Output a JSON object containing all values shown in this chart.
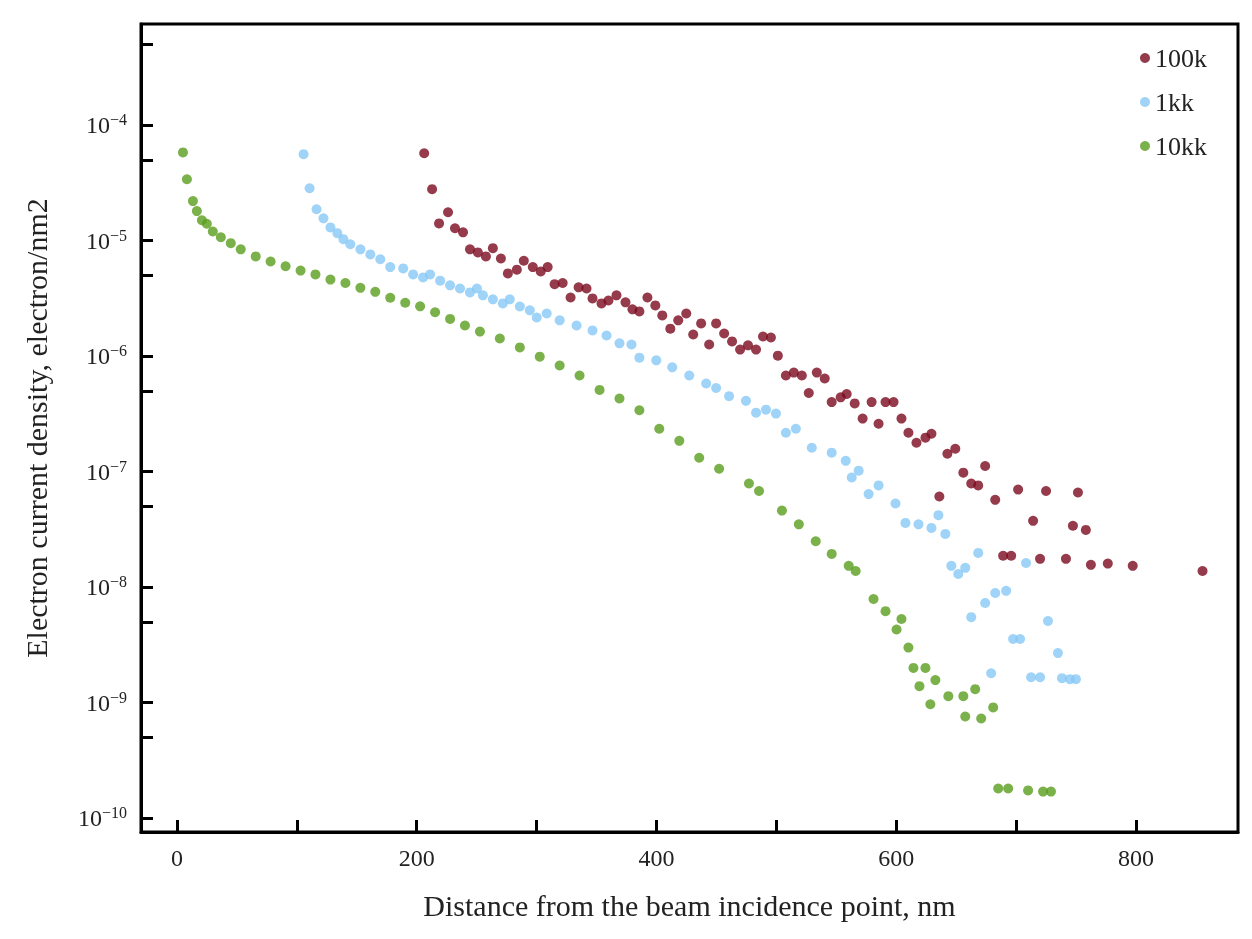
{
  "chart_data": {
    "type": "scatter",
    "xlabel": "Distance from the beam incidence point, nm",
    "ylabel": "Electron current density, electron/nm2",
    "log": "y",
    "grid": false,
    "legend": "top right",
    "marker": "circle",
    "xlim": [
      -30,
      885
    ],
    "xticks": [
      0,
      {
        "value": 100,
        "label": null
      },
      200,
      {
        "value": 300,
        "label": null
      },
      400,
      {
        "value": 500,
        "label": null
      },
      600,
      {
        "value": 700,
        "label": null
      },
      800
    ],
    "ylim": [
      7.6e-11,
      0.00075
    ],
    "yticks": [
      {
        "value": 1e-10,
        "label": "10$^{−10}$"
      },
      {
        "value": 5e-10,
        "label": null
      },
      {
        "value": 1e-09,
        "label": "10$^{−9}$"
      },
      {
        "value": 5e-09,
        "label": null
      },
      {
        "value": 1e-08,
        "label": "10$^{−8}$"
      },
      {
        "value": 5e-08,
        "label": null
      },
      {
        "value": 1e-07,
        "label": "10$^{−7}$"
      },
      {
        "value": 5e-07,
        "label": null
      },
      {
        "value": 1e-06,
        "label": "10$^{−6}$"
      },
      {
        "value": 5e-06,
        "label": null
      },
      {
        "value": 1e-05,
        "label": "10$^{−5}$"
      },
      {
        "value": 5e-05,
        "label": null
      },
      {
        "value": 0.0001,
        "label": "10$^{−4}$"
      },
      {
        "value": 0.0005,
        "label": null
      }
    ],
    "series": [
      {
        "name": "100k",
        "color": "#7b0a1e",
        "x": [
          206.2,
          212.8,
          218.6,
          226.1,
          231.9,
          238.6,
          244.4,
          251.0,
          257.7,
          263.5,
          270.2,
          276.0,
          283.5,
          289.3,
          296.8,
          303.4,
          309.2,
          315.0,
          321.7,
          328.3,
          335.0,
          341.6,
          346.6,
          354.1,
          359.9,
          366.6,
          374.1,
          379.9,
          385.7,
          392.4,
          399.0,
          404.8,
          411.5,
          418.1,
          424.8,
          430.6,
          437.2,
          443.9,
          449.7,
          456.4,
          463.0,
          469.7,
          476.3,
          483.0,
          488.8,
          495.4,
          501.2,
          507.9,
          514.5,
          521.2,
          527.0,
          533.7,
          540.3,
          546.1,
          553.6,
          558.6,
          565.3,
          571.9,
          579.4,
          585.2,
          591.0,
          597.7,
          604.3,
          610.1,
          616.8,
          624.3,
          629.3,
          635.9,
          642.6,
          649.2,
          655.9,
          662.5,
          668.3,
          674.1,
          682.5,
          689.1,
          695.8,
          701.6,
          714.1,
          719.9,
          724.9,
          741.5,
          747.3,
          751.5,
          758.1,
          762.3,
          776.4,
          797.2,
          855.4
        ],
        "values": [
          5.7e-05,
          2.79e-05,
          1.41e-05,
          1.76e-05,
          1.28e-05,
          1.18e-05,
          8.4e-06,
          7.9e-06,
          7.3e-06,
          8.6e-06,
          7e-06,
          5.2e-06,
          5.6e-06,
          6.7e-06,
          5.9e-06,
          5.4e-06,
          5.9e-06,
          4.2e-06,
          4.3e-06,
          3.22e-06,
          3.94e-06,
          3.85e-06,
          3.16e-06,
          2.86e-06,
          3.03e-06,
          3.36e-06,
          2.92e-06,
          2.54e-06,
          2.44e-06,
          3.22e-06,
          2.75e-06,
          2.25e-06,
          1.73e-06,
          2.04e-06,
          2.34e-06,
          1.54e-06,
          1.92e-06,
          1.26e-06,
          1.92e-06,
          1.57e-06,
          1.34e-06,
          1.14e-06,
          1.24e-06,
          1.14e-06,
          1.48e-06,
          1.45e-06,
          1.01e-06,
          6.8e-07,
          7.2e-07,
          6.8e-07,
          4.8e-07,
          7.2e-07,
          6.4e-07,
          4e-07,
          4.4e-07,
          4.7e-07,
          3.9e-07,
          2.88e-07,
          4e-07,
          2.6e-07,
          4e-07,
          4e-07,
          2.88e-07,
          2.17e-07,
          1.78e-07,
          1.97e-07,
          2.13e-07,
          6.1e-08,
          1.43e-07,
          1.58e-07,
          9.8e-08,
          7.9e-08,
          7.6e-08,
          1.12e-07,
          5.7e-08,
          1.87e-08,
          1.87e-08,
          7e-08,
          3.75e-08,
          1.76e-08,
          6.8e-08,
          1.76e-08,
          3.4e-08,
          6.6e-08,
          3.13e-08,
          1.56e-08,
          1.6e-08,
          1.53e-08,
          1.38e-08
        ]
      },
      {
        "name": "1kk",
        "color": "#87c8f5",
        "x": [
          105.6,
          110.6,
          116.4,
          122.2,
          128.0,
          133.8,
          138.8,
          144.6,
          153.0,
          161.3,
          169.6,
          177.9,
          188.7,
          197.0,
          205.3,
          211.1,
          219.5,
          227.8,
          236.1,
          244.4,
          250.2,
          255.2,
          263.5,
          271.8,
          277.6,
          286.0,
          294.3,
          300.1,
          308.4,
          319.2,
          333.3,
          346.6,
          358.3,
          369.1,
          379.1,
          385.7,
          399.8,
          413.1,
          427.3,
          441.4,
          449.7,
          460.5,
          474.6,
          483.0,
          491.3,
          499.6,
          507.9,
          516.2,
          529.5,
          546.1,
          557.8,
          562.8,
          568.6,
          576.9,
          585.2,
          599.3,
          607.6,
          618.5,
          629.3,
          635.1,
          640.9,
          645.9,
          651.7,
          657.5,
          662.5,
          668.3,
          674.1,
          679.1,
          682.5,
          691.6,
          697.4,
          703.2,
          708.2,
          712.4,
          719.9,
          726.5,
          734.8,
          738.2,
          744.8,
          749.8
        ],
        "values": [
          5.6e-05,
          2.84e-05,
          1.87e-05,
          1.56e-05,
          1.3e-05,
          1.16e-05,
          1.03e-05,
          9.3e-06,
          8.4e-06,
          7.6e-06,
          6.9e-06,
          5.9e-06,
          5.75e-06,
          5.1e-06,
          4.8e-06,
          5.1e-06,
          4.5e-06,
          4.1e-06,
          3.85e-06,
          3.56e-06,
          3.85e-06,
          3.36e-06,
          3.1e-06,
          2.86e-06,
          3.1e-06,
          2.69e-06,
          2.49e-06,
          2.16e-06,
          2.34e-06,
          2.04e-06,
          1.84e-06,
          1.67e-06,
          1.51e-06,
          1.29e-06,
          1.26e-06,
          9.7e-07,
          9.2e-07,
          8e-07,
          6.8e-07,
          5.8e-07,
          5.3e-07,
          4.5e-07,
          4.1e-07,
          3.24e-07,
          3.44e-07,
          3.18e-07,
          2.17e-07,
          2.35e-07,
          1.61e-07,
          1.46e-07,
          1.24e-07,
          8.9e-08,
          1.02e-07,
          6.4e-08,
          7.6e-08,
          5.3e-08,
          3.6e-08,
          3.5e-08,
          3.26e-08,
          4.2e-08,
          2.89e-08,
          1.53e-08,
          1.3e-08,
          1.47e-08,
          5.5e-09,
          1.98e-08,
          7.3e-09,
          1.8e-09,
          8.9e-09,
          9.3e-09,
          3.56e-09,
          3.56e-09,
          1.62e-08,
          1.66e-09,
          1.66e-09,
          5.1e-09,
          2.69e-09,
          1.63e-09,
          1.6e-09,
          1.6e-09
        ]
      },
      {
        "name": "10kk",
        "color": "#5a9e1e",
        "x": [
          5.0,
          8.3,
          13.3,
          16.6,
          20.8,
          24.9,
          29.9,
          36.6,
          44.9,
          53.2,
          65.7,
          78.1,
          90.6,
          103.1,
          115.5,
          128.0,
          140.5,
          153.0,
          165.4,
          177.9,
          190.4,
          202.8,
          215.3,
          227.8,
          240.2,
          252.7,
          269.3,
          286.0,
          302.6,
          319.2,
          335.8,
          352.5,
          369.1,
          385.7,
          402.3,
          419.0,
          435.6,
          452.2,
          477.1,
          485.5,
          504.6,
          518.7,
          532.8,
          546.1,
          560.3,
          566.1,
          581.0,
          591.0,
          600.2,
          604.3,
          610.1,
          614.3,
          619.3,
          624.3,
          628.4,
          632.6,
          643.4,
          655.9,
          657.5,
          665.8,
          670.8,
          680.8,
          685.0,
          693.3,
          709.9,
          722.4,
          729.0
        ],
        "values": [
          5.8e-05,
          3.4e-05,
          2.2e-05,
          1.8e-05,
          1.5e-05,
          1.4e-05,
          1.2e-05,
          1.07e-05,
          9.5e-06,
          8.4e-06,
          7.3e-06,
          6.6e-06,
          6e-06,
          5.5e-06,
          5.1e-06,
          4.6e-06,
          4.3e-06,
          3.9e-06,
          3.6e-06,
          3.2e-06,
          2.9e-06,
          2.7e-06,
          2.4e-06,
          2.1e-06,
          1.84e-06,
          1.63e-06,
          1.42e-06,
          1.19e-06,
          9.9e-07,
          8.3e-07,
          6.8e-07,
          5.1e-07,
          4.3e-07,
          3.4e-07,
          2.35e-07,
          1.85e-07,
          1.32e-07,
          1.06e-07,
          7.9e-08,
          6.8e-08,
          4.6e-08,
          3.5e-08,
          2.5e-08,
          1.94e-08,
          1.53e-08,
          1.38e-08,
          7.9e-09,
          6.2e-09,
          4.3e-09,
          5.3e-09,
          3e-09,
          2e-09,
          1.39e-09,
          2e-09,
          9.7e-10,
          1.57e-09,
          1.14e-09,
          1.14e-09,
          7.6e-10,
          1.31e-09,
          7.3e-10,
          9.1e-10,
          1.81e-10,
          1.81e-10,
          1.74e-10,
          1.7e-10,
          1.7e-10
        ]
      }
    ]
  }
}
